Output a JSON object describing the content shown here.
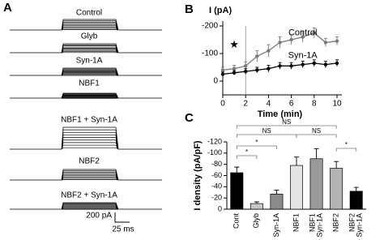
{
  "panels": [
    "A",
    "B",
    "C"
  ],
  "traces": {
    "labels": [
      "Control",
      "Glyb",
      "Syn-1A",
      "NBF1",
      "NBF1 + Syn-1A",
      "NBF2",
      "NBF2 + Syn-1A"
    ],
    "scale_current": "200 pA",
    "scale_time": "25 ms"
  },
  "chart_data": [
    {
      "type": "line",
      "y_label": "I (pA)",
      "x_label": "Time (min)",
      "annotation": "★",
      "vline": 2,
      "x": [
        0,
        1,
        2,
        3,
        4,
        5,
        6,
        7,
        8,
        9,
        10
      ],
      "xlim": [
        0,
        10
      ],
      "xticks": [
        0,
        2,
        4,
        6,
        8,
        10
      ],
      "ylim": [
        50,
        -200
      ],
      "yticks": [
        0,
        -100,
        -200
      ],
      "series": [
        {
          "name": "Control",
          "color": "#7a7a7a",
          "values": [
            -40,
            -45,
            -55,
            -90,
            -110,
            -140,
            -150,
            -160,
            -175,
            -140,
            -145
          ],
          "errors": [
            10,
            12,
            15,
            20,
            22,
            20,
            18,
            20,
            18,
            15,
            15
          ]
        },
        {
          "name": "Syn-1A",
          "color": "#000000",
          "values": [
            -25,
            -30,
            -35,
            -40,
            -45,
            -55,
            -55,
            -60,
            -65,
            -60,
            -65
          ],
          "errors": [
            8,
            8,
            10,
            10,
            12,
            12,
            12,
            12,
            12,
            12,
            12
          ]
        }
      ]
    },
    {
      "type": "bar",
      "y_label": "I density (pA/pF)",
      "categories": [
        "Cont",
        "Glyb",
        "Syn-1A",
        "NBF1",
        "NBF1 + Syn-1A",
        "NBF2",
        "NBF2 + Syn-1A"
      ],
      "values": [
        -65,
        -10,
        -27,
        -78,
        -90,
        -73,
        -32
      ],
      "errors": [
        10,
        3,
        7,
        15,
        18,
        12,
        7
      ],
      "colors": [
        "#000000",
        "#c8c8c8",
        "#8a8a8a",
        "#e4e4e4",
        "#9a9a9a",
        "#b4b4b4",
        "#000000"
      ],
      "ylim": [
        0,
        -120
      ],
      "yticks": [
        0,
        -20,
        -40,
        -60,
        -80,
        -100,
        -120
      ],
      "significance": [
        "NS",
        "NS",
        "NS",
        "*",
        "*",
        "*"
      ]
    }
  ]
}
